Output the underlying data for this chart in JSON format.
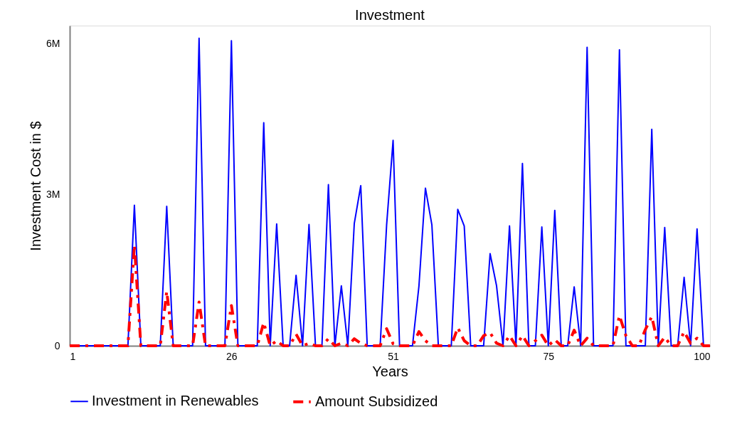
{
  "chart_data": {
    "type": "line",
    "title": "Investment",
    "xlabel": "Years",
    "ylabel": "Investment Cost in $",
    "x": [
      1,
      2,
      3,
      4,
      5,
      6,
      7,
      8,
      9,
      10,
      11,
      12,
      13,
      14,
      15,
      16,
      17,
      18,
      19,
      20,
      21,
      22,
      23,
      24,
      25,
      26,
      27,
      28,
      29,
      30,
      31,
      32,
      33,
      34,
      35,
      36,
      37,
      38,
      39,
      40,
      41,
      42,
      43,
      44,
      45,
      46,
      47,
      48,
      49,
      50,
      51,
      52,
      53,
      54,
      55,
      56,
      57,
      58,
      59,
      60,
      61,
      62,
      63,
      64,
      65,
      66,
      67,
      68,
      69,
      70,
      71,
      72,
      73,
      74,
      75,
      76,
      77,
      78,
      79,
      80,
      81,
      82,
      83,
      84,
      85,
      86,
      87,
      88,
      89,
      90,
      91,
      92,
      93,
      94,
      95,
      96,
      97,
      98,
      99,
      100
    ],
    "xlim": [
      1,
      100
    ],
    "xticks": [
      1,
      26,
      51,
      75,
      100
    ],
    "ylim": [
      0,
      6360000
    ],
    "yticks": [
      {
        "value": 0,
        "label": "0"
      },
      {
        "value": 3000000,
        "label": "3M"
      },
      {
        "value": 6000000,
        "label": "6M"
      }
    ],
    "grid": false,
    "legend": "bottom",
    "marker": "none",
    "series": [
      {
        "name": "Investment in Renewables",
        "color": "#0000ff",
        "line_style": "solid",
        "values": [
          0,
          0,
          0,
          0,
          0,
          0,
          0,
          0,
          0,
          0,
          2790000,
          0,
          0,
          0,
          0,
          2770000,
          0,
          0,
          0,
          0,
          6110000,
          0,
          0,
          0,
          0,
          6060000,
          0,
          0,
          0,
          0,
          4430000,
          0,
          2420000,
          0,
          0,
          1400000,
          0,
          2410000,
          0,
          0,
          3200000,
          0,
          1190000,
          0,
          2430000,
          3180000,
          0,
          0,
          0,
          2400000,
          4080000,
          0,
          0,
          0,
          1190000,
          3130000,
          2400000,
          0,
          0,
          0,
          2710000,
          2380000,
          0,
          0,
          0,
          1830000,
          1190000,
          0,
          2380000,
          0,
          3620000,
          0,
          0,
          2360000,
          0,
          2690000,
          0,
          0,
          1170000,
          0,
          5930000,
          0,
          0,
          0,
          0,
          5880000,
          0,
          0,
          0,
          0,
          4300000,
          0,
          2350000,
          0,
          0,
          1360000,
          0,
          2320000,
          0,
          0
        ]
      },
      {
        "name": "Amount Subsidized",
        "color": "#ff0000",
        "line_style": "dashed",
        "values": [
          0,
          0,
          0,
          0,
          0,
          0,
          0,
          0,
          0,
          0,
          2000000,
          0,
          0,
          0,
          0,
          1080000,
          0,
          0,
          0,
          0,
          870000,
          0,
          0,
          0,
          0,
          800000,
          0,
          0,
          0,
          0,
          460000,
          0,
          100000,
          0,
          0,
          230000,
          0,
          50000,
          0,
          0,
          140000,
          0,
          50000,
          0,
          140000,
          50000,
          0,
          0,
          0,
          340000,
          40000,
          0,
          0,
          0,
          280000,
          100000,
          0,
          0,
          0,
          0,
          360000,
          100000,
          0,
          0,
          200000,
          260000,
          50000,
          0,
          200000,
          0,
          200000,
          0,
          100000,
          210000,
          0,
          120000,
          0,
          0,
          310000,
          0,
          150000,
          0,
          0,
          0,
          0,
          600000,
          200000,
          0,
          0,
          320000,
          580000,
          0,
          170000,
          0,
          0,
          280000,
          50000,
          150000,
          0,
          0
        ]
      }
    ]
  }
}
